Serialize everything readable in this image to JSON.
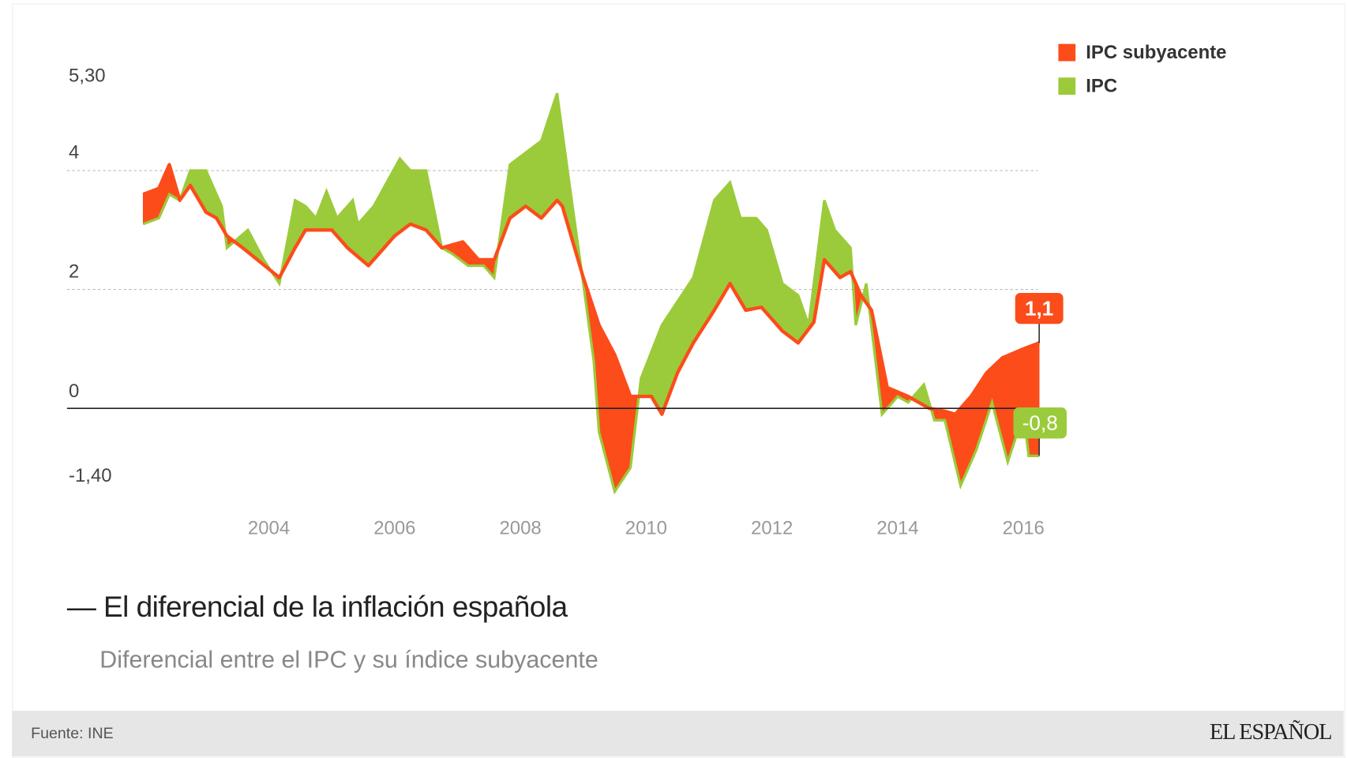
{
  "chart_data": {
    "type": "area",
    "title": "El diferencial de la inflación española",
    "subtitle": "Diferencial entre el IPC y su índice subyacente",
    "source": "Fuente: INE",
    "brand": "EL ESPAÑOL",
    "ylim": [
      -1.4,
      5.3
    ],
    "y_ticks": [
      {
        "value": 5.3,
        "label": "5,30"
      },
      {
        "value": 4,
        "label": "4"
      },
      {
        "value": 2,
        "label": "2"
      },
      {
        "value": 0,
        "label": "0"
      },
      {
        "value": -1.4,
        "label": "-1,40"
      }
    ],
    "x_ticks": [
      "2004",
      "2006",
      "2008",
      "2010",
      "2012",
      "2014",
      "2016"
    ],
    "grid": "dotted horizontal at 2 and 4",
    "legend": "top-right",
    "series": [
      {
        "name": "IPC subyacente",
        "color": "#fc4c1a",
        "end_label": "1,1",
        "points": [
          [
            "2002-01",
            3.6
          ],
          [
            "2002-04",
            3.7
          ],
          [
            "2002-06",
            4.1
          ],
          [
            "2002-08",
            3.5
          ],
          [
            "2002-10",
            3.75
          ],
          [
            "2003-01",
            3.3
          ],
          [
            "2003-03",
            3.2
          ],
          [
            "2003-05",
            2.9
          ],
          [
            "2003-08",
            2.7
          ],
          [
            "2004-03",
            2.2
          ],
          [
            "2004-06",
            2.7
          ],
          [
            "2004-08",
            3.0
          ],
          [
            "2005-01",
            3.0
          ],
          [
            "2005-04",
            2.7
          ],
          [
            "2005-08",
            2.4
          ],
          [
            "2006-01",
            2.9
          ],
          [
            "2006-04",
            3.1
          ],
          [
            "2006-07",
            3.0
          ],
          [
            "2006-10",
            2.7
          ],
          [
            "2007-02",
            2.8
          ],
          [
            "2007-05",
            2.5
          ],
          [
            "2007-08",
            2.5
          ],
          [
            "2007-11",
            3.2
          ],
          [
            "2008-02",
            3.4
          ],
          [
            "2008-05",
            3.2
          ],
          [
            "2008-08",
            3.5
          ],
          [
            "2008-09",
            3.4
          ],
          [
            "2009-01",
            2.2
          ],
          [
            "2009-04",
            1.4
          ],
          [
            "2009-07",
            0.9
          ],
          [
            "2009-10",
            0.2
          ],
          [
            "2010-02",
            0.2
          ],
          [
            "2010-04",
            -0.1
          ],
          [
            "2010-07",
            0.6
          ],
          [
            "2010-10",
            1.1
          ],
          [
            "2011-02",
            1.65
          ],
          [
            "2011-05",
            2.1
          ],
          [
            "2011-08",
            1.65
          ],
          [
            "2011-11",
            1.7
          ],
          [
            "2012-03",
            1.3
          ],
          [
            "2012-06",
            1.1
          ],
          [
            "2012-09",
            1.45
          ],
          [
            "2012-11",
            2.5
          ],
          [
            "2013-02",
            2.2
          ],
          [
            "2013-04",
            2.3
          ],
          [
            "2013-06",
            1.9
          ],
          [
            "2013-08",
            1.65
          ],
          [
            "2013-11",
            0.35
          ],
          [
            "2014-03",
            0.2
          ],
          [
            "2014-07",
            0.0
          ],
          [
            "2014-10",
            -0.05
          ],
          [
            "2014-12",
            -0.1
          ],
          [
            "2015-03",
            0.2
          ],
          [
            "2015-06",
            0.6
          ],
          [
            "2015-09",
            0.85
          ],
          [
            "2016-01",
            1.0
          ],
          [
            "2016-04",
            1.1
          ]
        ]
      },
      {
        "name": "IPC",
        "color": "#9bcb3b",
        "end_label": "-0,8",
        "points": [
          [
            "2002-01",
            3.1
          ],
          [
            "2002-04",
            3.2
          ],
          [
            "2002-06",
            3.6
          ],
          [
            "2002-08",
            3.5
          ],
          [
            "2002-10",
            4.0
          ],
          [
            "2003-01",
            4.0
          ],
          [
            "2003-02",
            3.8
          ],
          [
            "2003-04",
            3.4
          ],
          [
            "2003-05",
            2.7
          ],
          [
            "2003-09",
            3.0
          ],
          [
            "2003-12",
            2.5
          ],
          [
            "2004-03",
            2.1
          ],
          [
            "2004-06",
            3.5
          ],
          [
            "2004-08",
            3.4
          ],
          [
            "2004-10",
            3.2
          ],
          [
            "2004-12",
            3.65
          ],
          [
            "2005-02",
            3.2
          ],
          [
            "2005-05",
            3.5
          ],
          [
            "2005-06",
            3.1
          ],
          [
            "2005-09",
            3.4
          ],
          [
            "2006-02",
            4.2
          ],
          [
            "2006-04",
            4.0
          ],
          [
            "2006-07",
            4.0
          ],
          [
            "2006-10",
            2.7
          ],
          [
            "2006-12",
            2.6
          ],
          [
            "2007-03",
            2.4
          ],
          [
            "2007-06",
            2.4
          ],
          [
            "2007-08",
            2.2
          ],
          [
            "2007-11",
            4.1
          ],
          [
            "2008-05",
            4.5
          ],
          [
            "2008-08",
            5.3
          ],
          [
            "2008-10",
            4.0
          ],
          [
            "2009-01",
            2.1
          ],
          [
            "2009-03",
            0.8
          ],
          [
            "2009-04",
            -0.4
          ],
          [
            "2009-07",
            -1.4
          ],
          [
            "2009-10",
            -1.0
          ],
          [
            "2009-12",
            0.5
          ],
          [
            "2010-04",
            1.4
          ],
          [
            "2010-07",
            1.8
          ],
          [
            "2010-10",
            2.2
          ],
          [
            "2011-02",
            3.5
          ],
          [
            "2011-05",
            3.8
          ],
          [
            "2011-07",
            3.2
          ],
          [
            "2011-10",
            3.2
          ],
          [
            "2011-12",
            3.0
          ],
          [
            "2012-03",
            2.1
          ],
          [
            "2012-06",
            1.9
          ],
          [
            "2012-08",
            1.4
          ],
          [
            "2012-11",
            3.5
          ],
          [
            "2013-01",
            3.0
          ],
          [
            "2013-04",
            2.7
          ],
          [
            "2013-05",
            1.4
          ],
          [
            "2013-07",
            2.1
          ],
          [
            "2013-10",
            -0.1
          ],
          [
            "2014-01",
            0.2
          ],
          [
            "2014-03",
            0.1
          ],
          [
            "2014-06",
            0.4
          ],
          [
            "2014-08",
            -0.2
          ],
          [
            "2014-10",
            -0.2
          ],
          [
            "2015-01",
            -1.3
          ],
          [
            "2015-04",
            -0.7
          ],
          [
            "2015-07",
            0.1
          ],
          [
            "2015-10",
            -0.9
          ],
          [
            "2016-01",
            -0.1
          ],
          [
            "2016-02",
            -0.8
          ],
          [
            "2016-04",
            -0.8
          ]
        ]
      }
    ]
  }
}
